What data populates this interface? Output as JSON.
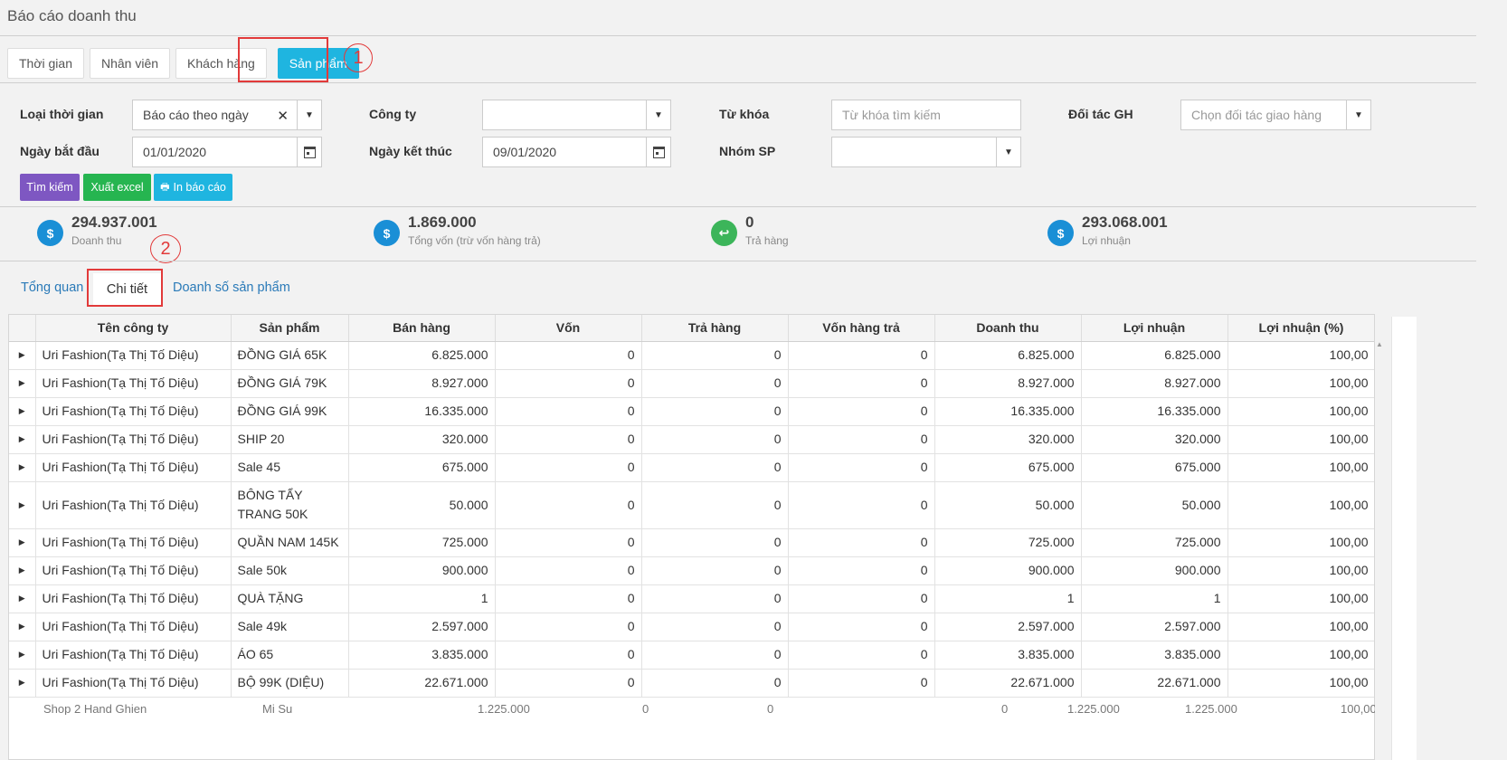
{
  "page_title": "Báo cáo doanh thu",
  "report_tabs": [
    "Thời gian",
    "Nhân viên",
    "Khách hàng",
    "Sản phẩm"
  ],
  "annotations": {
    "one": "1",
    "two": "2"
  },
  "filters": {
    "time_type": {
      "label": "Loại thời gian",
      "value": "Báo cáo theo ngày"
    },
    "company": {
      "label": "Công ty",
      "value": ""
    },
    "keyword": {
      "label": "Từ khóa",
      "placeholder": "Từ khóa tìm kiếm"
    },
    "partner": {
      "label": "Đối tác GH",
      "placeholder": "Chọn đối tác giao hàng"
    },
    "start_date": {
      "label": "Ngày bắt đầu",
      "value": "01/01/2020"
    },
    "end_date": {
      "label": "Ngày kết thúc",
      "value": "09/01/2020"
    },
    "product_group": {
      "label": "Nhóm SP",
      "value": ""
    }
  },
  "buttons": {
    "search": "Tìm kiếm",
    "export": "Xuất excel",
    "print": "In báo cáo"
  },
  "colors": {
    "accent": "#1fb5e0",
    "search": "#7e57c2",
    "export": "#26b550",
    "print": "#1fb5e0",
    "highlight": "#e23a3a"
  },
  "stats": [
    {
      "value": "294.937.001",
      "label": "Doanh thu",
      "icon": "dollar-icon",
      "color": "#1a8fd6"
    },
    {
      "value": "1.869.000",
      "label": "Tổng vốn (trừ vốn hàng trả)",
      "icon": "dollar-icon",
      "color": "#1a8fd6"
    },
    {
      "value": "0",
      "label": "Trả hàng",
      "icon": "return-icon",
      "color": "#3cb55a"
    },
    {
      "value": "293.068.001",
      "label": "Lợi nhuận",
      "icon": "dollar-icon",
      "color": "#1a8fd6"
    }
  ],
  "sub_tabs": [
    "Tổng quan",
    "Chi tiết",
    "Doanh số sản phẩm"
  ],
  "table": {
    "columns": [
      "Tên công ty",
      "Sản phẩm",
      "Bán hàng",
      "Vốn",
      "Trả hàng",
      "Vốn hàng trả",
      "Doanh thu",
      "Lợi nhuận",
      "Lợi nhuận (%)"
    ],
    "rows": [
      [
        "Uri Fashion(Tạ Thị Tố Diệu)",
        "ĐỒNG GIÁ 65K",
        "6.825.000",
        "0",
        "0",
        "0",
        "6.825.000",
        "6.825.000",
        "100,00"
      ],
      [
        "Uri Fashion(Tạ Thị Tố Diệu)",
        "ĐỒNG GIÁ 79K",
        "8.927.000",
        "0",
        "0",
        "0",
        "8.927.000",
        "8.927.000",
        "100,00"
      ],
      [
        "Uri Fashion(Tạ Thị Tố Diệu)",
        "ĐỒNG GIÁ 99K",
        "16.335.000",
        "0",
        "0",
        "0",
        "16.335.000",
        "16.335.000",
        "100,00"
      ],
      [
        "Uri Fashion(Tạ Thị Tố Diệu)",
        "SHIP 20",
        "320.000",
        "0",
        "0",
        "0",
        "320.000",
        "320.000",
        "100,00"
      ],
      [
        "Uri Fashion(Tạ Thị Tố Diệu)",
        "Sale 45",
        "675.000",
        "0",
        "0",
        "0",
        "675.000",
        "675.000",
        "100,00"
      ],
      [
        "Uri Fashion(Tạ Thị Tố Diệu)",
        "BÔNG TẨY TRANG 50K",
        "50.000",
        "0",
        "0",
        "0",
        "50.000",
        "50.000",
        "100,00"
      ],
      [
        "Uri Fashion(Tạ Thị Tố Diệu)",
        "QUẦN NAM 145K",
        "725.000",
        "0",
        "0",
        "0",
        "725.000",
        "725.000",
        "100,00"
      ],
      [
        "Uri Fashion(Tạ Thị Tố Diệu)",
        "Sale 50k",
        "900.000",
        "0",
        "0",
        "0",
        "900.000",
        "900.000",
        "100,00"
      ],
      [
        "Uri Fashion(Tạ Thị Tố Diệu)",
        "QUÀ TẶNG",
        "1",
        "0",
        "0",
        "0",
        "1",
        "1",
        "100,00"
      ],
      [
        "Uri Fashion(Tạ Thị Tố Diệu)",
        "Sale 49k",
        "2.597.000",
        "0",
        "0",
        "0",
        "2.597.000",
        "2.597.000",
        "100,00"
      ],
      [
        "Uri Fashion(Tạ Thị Tố Diệu)",
        "ÁO 65",
        "3.835.000",
        "0",
        "0",
        "0",
        "3.835.000",
        "3.835.000",
        "100,00"
      ],
      [
        "Uri Fashion(Tạ Thị Tố Diệu)",
        "BỘ 99K (DIỆU)",
        "22.671.000",
        "0",
        "0",
        "0",
        "22.671.000",
        "22.671.000",
        "100,00"
      ]
    ],
    "partial_row": [
      "Shop 2 Hand Ghien",
      "Mi Su",
      "1.225.000",
      "0",
      "0",
      "0",
      "1.225.000",
      "1.225.000",
      "100,00"
    ]
  }
}
